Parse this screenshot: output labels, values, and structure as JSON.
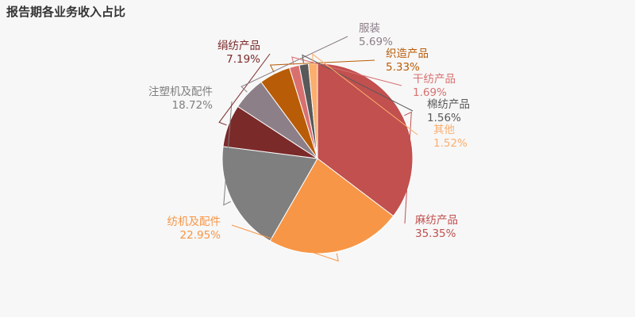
{
  "chart_data": {
    "type": "pie",
    "title": "报告期各业务收入占比",
    "slices": [
      {
        "name": "麻纺产品",
        "label": "35.35%",
        "value": 35.35,
        "color": "#c1504f"
      },
      {
        "name": "纺机及配件",
        "label": "22.95%",
        "value": 22.95,
        "color": "#f79646"
      },
      {
        "name": "注塑机及配件",
        "label": "18.72%",
        "value": 18.72,
        "color": "#7f7f7f"
      },
      {
        "name": "绢纺产品",
        "label": "7.19%",
        "value": 7.19,
        "color": "#7b2a2a"
      },
      {
        "name": "服装",
        "label": "5.69%",
        "value": 5.69,
        "color": "#8c7f88"
      },
      {
        "name": "织造产品",
        "label": "5.33%",
        "value": 5.33,
        "color": "#b95c07"
      },
      {
        "name": "干纺产品",
        "label": "1.69%",
        "value": 1.69,
        "color": "#d97070"
      },
      {
        "name": "棉纺产品",
        "label": "1.56%",
        "value": 1.56,
        "color": "#595959"
      },
      {
        "name": "其他",
        "label": "1.52%",
        "value": 1.52,
        "color": "#fbae6e"
      }
    ]
  }
}
